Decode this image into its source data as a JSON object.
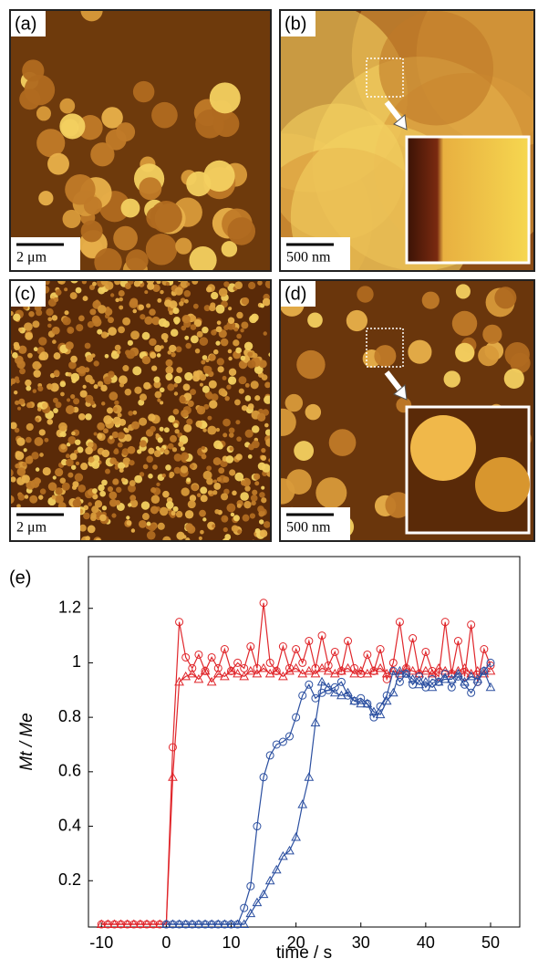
{
  "panels": [
    {
      "label": "(a)",
      "scale": "2 μm"
    },
    {
      "label": "(b)",
      "scale": "500 nm"
    },
    {
      "label": "(c)",
      "scale": "2 μm"
    },
    {
      "label": "(d)",
      "scale": "500 nm"
    }
  ],
  "chart_data": {
    "type": "line",
    "panel_label": "(e)",
    "xlabel": "time / s",
    "ylabel": "Mt / Me",
    "xlim": [
      -12,
      54.5
    ],
    "ylim": [
      0.03,
      1.39
    ],
    "xticks": [
      -10,
      0,
      10,
      20,
      30,
      40,
      50
    ],
    "yticks": [
      0.2,
      0.4,
      0.6,
      0.8,
      1.0,
      1.2
    ],
    "x": [
      -10,
      -9,
      -8,
      -7,
      -6,
      -5,
      -4,
      -3,
      -2,
      -1,
      0,
      1,
      2,
      3,
      4,
      5,
      6,
      7,
      8,
      9,
      10,
      11,
      12,
      13,
      14,
      15,
      16,
      17,
      18,
      19,
      20,
      21,
      22,
      23,
      24,
      25,
      26,
      27,
      28,
      29,
      30,
      31,
      32,
      33,
      34,
      35,
      36,
      37,
      38,
      39,
      40,
      41,
      42,
      43,
      44,
      45,
      46,
      47,
      48,
      49,
      50
    ],
    "series": [
      {
        "color": "#e0262b",
        "marker": "circle",
        "values": [
          0.04,
          0.04,
          0.04,
          0.04,
          0.04,
          0.04,
          0.04,
          0.04,
          0.04,
          0.04,
          0.04,
          0.69,
          1.15,
          1.02,
          0.98,
          1.03,
          0.97,
          1.02,
          0.98,
          1.05,
          0.97,
          1.0,
          0.98,
          1.06,
          0.98,
          1.22,
          1.0,
          0.97,
          1.06,
          0.98,
          1.05,
          1.0,
          1.08,
          0.98,
          1.1,
          0.99,
          1.04,
          0.97,
          1.08,
          0.98,
          0.96,
          1.03,
          0.97,
          1.05,
          0.94,
          1.0,
          1.15,
          0.98,
          1.09,
          0.96,
          1.04,
          0.97,
          0.95,
          1.15,
          0.96,
          1.08,
          0.95,
          1.14,
          0.93,
          1.05,
          0.99
        ]
      },
      {
        "color": "#e0262b",
        "marker": "triangle",
        "values": [
          0.04,
          0.04,
          0.04,
          0.04,
          0.04,
          0.04,
          0.04,
          0.04,
          0.04,
          0.04,
          0.04,
          0.58,
          0.93,
          0.95,
          0.96,
          0.94,
          0.97,
          0.93,
          0.96,
          0.95,
          0.97,
          0.96,
          0.95,
          0.97,
          0.96,
          0.98,
          0.96,
          0.97,
          0.95,
          0.97,
          0.98,
          0.96,
          0.97,
          0.96,
          0.98,
          0.97,
          0.96,
          0.97,
          0.98,
          0.96,
          0.97,
          0.96,
          0.97,
          0.98,
          0.96,
          0.97,
          0.96,
          0.98,
          0.97,
          0.96,
          0.97,
          0.96,
          0.98,
          0.97,
          0.96,
          0.97,
          0.98,
          0.96,
          0.97,
          0.96,
          0.97
        ]
      },
      {
        "color": "#2b4fa0",
        "marker": "circle",
        "values": [
          null,
          null,
          null,
          null,
          null,
          null,
          null,
          null,
          null,
          null,
          0.04,
          0.04,
          0.04,
          0.04,
          0.04,
          0.04,
          0.04,
          0.04,
          0.04,
          0.04,
          0.04,
          0.04,
          0.1,
          0.18,
          0.4,
          0.58,
          0.66,
          0.7,
          0.71,
          0.73,
          0.8,
          0.88,
          0.92,
          0.87,
          0.89,
          0.9,
          0.91,
          0.93,
          0.88,
          0.86,
          0.87,
          0.85,
          0.8,
          0.84,
          0.88,
          0.97,
          0.93,
          0.96,
          0.92,
          0.95,
          0.91,
          0.94,
          0.93,
          0.96,
          0.91,
          0.95,
          0.92,
          0.89,
          0.93,
          0.97,
          1.0
        ]
      },
      {
        "color": "#2b4fa0",
        "marker": "triangle",
        "values": [
          null,
          null,
          null,
          null,
          null,
          null,
          null,
          null,
          null,
          null,
          0.04,
          0.04,
          0.04,
          0.04,
          0.04,
          0.04,
          0.04,
          0.04,
          0.04,
          0.04,
          0.04,
          0.04,
          0.04,
          0.08,
          0.12,
          0.15,
          0.2,
          0.24,
          0.29,
          0.31,
          0.36,
          0.48,
          0.58,
          0.78,
          0.93,
          0.91,
          0.89,
          0.88,
          0.89,
          0.86,
          0.85,
          0.85,
          0.82,
          0.81,
          0.86,
          0.89,
          0.97,
          0.96,
          0.94,
          0.92,
          0.93,
          0.91,
          0.93,
          0.94,
          0.94,
          0.96,
          0.93,
          0.95,
          0.94,
          0.97,
          0.91
        ]
      }
    ]
  }
}
